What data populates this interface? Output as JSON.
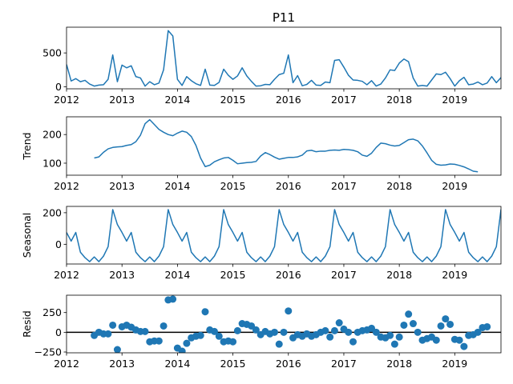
{
  "title": "P11",
  "colors": {
    "line": "#1f77b4",
    "axis": "#000000",
    "zero_line": "#000000"
  },
  "x_tick_labels": [
    "2012",
    "2013",
    "2014",
    "2015",
    "2016",
    "2017",
    "2018",
    "2019"
  ],
  "chart_data": [
    {
      "type": "line",
      "panel": "observed",
      "ylabel": "",
      "xlim": [
        "2012-01",
        "2019-11"
      ],
      "ylim": [
        -30,
        880
      ],
      "yticks": [
        0,
        500
      ],
      "x_start": "2012-01",
      "values": [
        330,
        85,
        120,
        75,
        95,
        40,
        10,
        25,
        30,
        110,
        470,
        75,
        320,
        280,
        310,
        150,
        130,
        10,
        75,
        30,
        55,
        250,
        830,
        750,
        110,
        20,
        150,
        90,
        45,
        20,
        260,
        25,
        20,
        65,
        260,
        170,
        110,
        160,
        280,
        160,
        80,
        10,
        15,
        35,
        30,
        110,
        180,
        200,
        470,
        60,
        165,
        15,
        35,
        95,
        25,
        20,
        70,
        60,
        390,
        400,
        290,
        170,
        100,
        95,
        80,
        30,
        90,
        10,
        40,
        130,
        250,
        240,
        350,
        410,
        370,
        130,
        10,
        20,
        10,
        100,
        190,
        180,
        215,
        120,
        10,
        90,
        140,
        30,
        40,
        70,
        30,
        55,
        150,
        60,
        135,
        130
      ]
    },
    {
      "type": "line",
      "panel": "trend",
      "ylabel": "Trend",
      "xlim": [
        "2012-01",
        "2019-11"
      ],
      "ylim": [
        58,
        262
      ],
      "yticks": [
        100,
        200
      ],
      "x_start": "2012-07",
      "values": [
        118,
        122,
        138,
        150,
        155,
        157,
        158,
        162,
        165,
        175,
        198,
        238,
        252,
        235,
        218,
        208,
        200,
        196,
        205,
        212,
        208,
        193,
        162,
        118,
        88,
        93,
        105,
        112,
        118,
        120,
        110,
        98,
        100,
        102,
        103,
        106,
        125,
        137,
        130,
        121,
        114,
        117,
        120,
        120,
        122,
        128,
        143,
        145,
        140,
        142,
        142,
        145,
        146,
        145,
        148,
        147,
        145,
        140,
        128,
        124,
        135,
        155,
        170,
        168,
        163,
        160,
        162,
        172,
        182,
        184,
        178,
        160,
        136,
        110,
        96,
        93,
        94,
        97,
        96,
        92,
        87,
        80,
        72,
        70
      ]
    },
    {
      "type": "line",
      "panel": "seasonal",
      "ylabel": "Seasonal",
      "xlim": [
        "2012-01",
        "2019-11"
      ],
      "ylim": [
        -125,
        240
      ],
      "yticks": [
        0,
        200
      ],
      "x_start": "2012-01",
      "values": [
        75,
        20,
        75,
        -50,
        -85,
        -110,
        -80,
        -110,
        -75,
        -15,
        220,
        125,
        75,
        20,
        75,
        -50,
        -85,
        -110,
        -80,
        -110,
        -75,
        -15,
        220,
        125,
        75,
        20,
        75,
        -50,
        -85,
        -110,
        -80,
        -110,
        -75,
        -15,
        220,
        125,
        75,
        20,
        75,
        -50,
        -85,
        -110,
        -80,
        -110,
        -75,
        -15,
        220,
        125,
        75,
        20,
        75,
        -50,
        -85,
        -110,
        -80,
        -110,
        -75,
        -15,
        220,
        125,
        75,
        20,
        75,
        -50,
        -85,
        -110,
        -80,
        -110,
        -75,
        -15,
        220,
        125,
        75,
        20,
        75,
        -50,
        -85,
        -110,
        -80,
        -110,
        -75,
        -15,
        220,
        125,
        75,
        20,
        75,
        -50,
        -85,
        -110,
        -80,
        -110,
        -75,
        -15,
        220,
        125
      ]
    },
    {
      "type": "scatter",
      "panel": "resid",
      "ylabel": "Resid",
      "xlim": [
        "2012-01",
        "2019-11"
      ],
      "ylim": [
        -260,
        470
      ],
      "yticks": [
        -250,
        0,
        250
      ],
      "zero_line": true,
      "x_start": "2012-07",
      "values": [
        -40,
        0,
        -20,
        -20,
        90,
        -220,
        70,
        90,
        65,
        30,
        10,
        10,
        -120,
        -110,
        -110,
        80,
        410,
        420,
        -200,
        -240,
        -140,
        -70,
        -50,
        -40,
        260,
        30,
        10,
        -50,
        -120,
        -110,
        -120,
        20,
        110,
        100,
        80,
        30,
        -30,
        10,
        -20,
        0,
        -150,
        0,
        270,
        -70,
        -30,
        -50,
        -20,
        -50,
        -30,
        0,
        20,
        -60,
        20,
        120,
        40,
        0,
        -120,
        0,
        20,
        30,
        50,
        0,
        -60,
        -70,
        -40,
        -150,
        -60,
        90,
        230,
        110,
        0,
        -100,
        -80,
        -60,
        -100,
        80,
        170,
        100,
        -90,
        -100,
        -180,
        -40,
        -30,
        0,
        60,
        70
      ]
    }
  ]
}
